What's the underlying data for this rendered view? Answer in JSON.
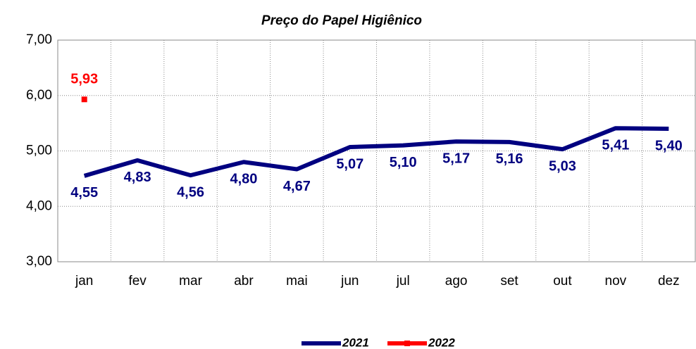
{
  "chart_data": {
    "type": "line",
    "title": "Preço do Papel Higiênico",
    "categories": [
      "jan",
      "fev",
      "mar",
      "abr",
      "mai",
      "jun",
      "jul",
      "ago",
      "set",
      "out",
      "nov",
      "dez"
    ],
    "series": [
      {
        "name": "2021",
        "color": "#000080",
        "values": [
          4.55,
          4.83,
          4.56,
          4.8,
          4.67,
          5.07,
          5.1,
          5.17,
          5.16,
          5.03,
          5.41,
          5.4
        ],
        "value_labels": [
          "4,55",
          "4,83",
          "4,56",
          "4,80",
          "4,67",
          "5,07",
          "5,10",
          "5,17",
          "5,16",
          "5,03",
          "5,41",
          "5,40"
        ]
      },
      {
        "name": "2022",
        "color": "#ff0000",
        "marker": "square",
        "values": [
          5.93,
          null,
          null,
          null,
          null,
          null,
          null,
          null,
          null,
          null,
          null,
          null
        ],
        "value_labels": [
          "5,93",
          null,
          null,
          null,
          null,
          null,
          null,
          null,
          null,
          null,
          null,
          null
        ]
      }
    ],
    "ylim": [
      3,
      7
    ],
    "yticks": [
      {
        "value": 3,
        "label": "3,00"
      },
      {
        "value": 4,
        "label": "4,00"
      },
      {
        "value": 5,
        "label": "5,00"
      },
      {
        "value": 6,
        "label": "6,00"
      },
      {
        "value": 7,
        "label": "7,00"
      }
    ],
    "grid": true,
    "legend": "bottom"
  }
}
